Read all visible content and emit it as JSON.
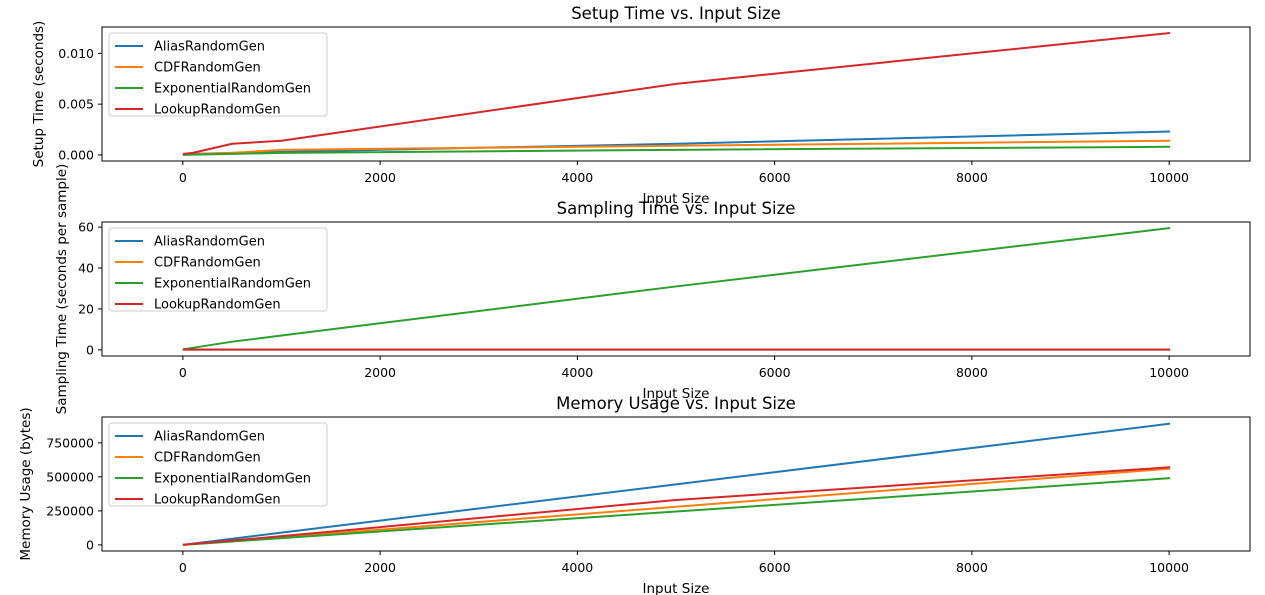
{
  "chart_data": [
    {
      "type": "line",
      "title": "Setup Time vs. Input Size",
      "xlabel": "Input Size",
      "ylabel": "Setup Time (seconds)",
      "xlim": [
        -820,
        10820
      ],
      "ylim": [
        -0.0006,
        0.0126
      ],
      "xticks": [
        0,
        2000,
        4000,
        6000,
        8000,
        10000
      ],
      "xtick_labels": [
        "0",
        "2000",
        "4000",
        "6000",
        "8000",
        "10000"
      ],
      "yticks": [
        0,
        0.005,
        0.01
      ],
      "ytick_labels": [
        "0.000",
        "0.005",
        "0.010"
      ],
      "legend_position": "upper-left",
      "grid": false,
      "x": [
        10,
        100,
        500,
        1000,
        5000,
        10000
      ],
      "series": [
        {
          "name": "AliasRandomGen",
          "color": "#1f77b4",
          "values": [
            5e-05,
            0.0001,
            0.0002,
            0.0003,
            0.0011,
            0.0023
          ]
        },
        {
          "name": "CDFRandomGen",
          "color": "#ff7f0e",
          "values": [
            3e-05,
            8e-05,
            0.0002,
            0.0005,
            0.0009,
            0.0014
          ]
        },
        {
          "name": "ExponentialRandomGen",
          "color": "#2ca02c",
          "values": [
            1e-05,
            3e-05,
            0.0001,
            0.0002,
            0.0005,
            0.0008
          ]
        },
        {
          "name": "LookupRandomGen",
          "color": "#d62728",
          "values": [
            0.0001,
            0.0002,
            0.0011,
            0.0014,
            0.007,
            0.012
          ]
        }
      ]
    },
    {
      "type": "line",
      "title": "Sampling Time vs. Input Size",
      "xlabel": "Input Size",
      "ylabel": "Sampling Time (seconds per sample)",
      "xlim": [
        -820,
        10820
      ],
      "ylim": [
        -3,
        62.5
      ],
      "xticks": [
        0,
        2000,
        4000,
        6000,
        8000,
        10000
      ],
      "xtick_labels": [
        "0",
        "2000",
        "4000",
        "6000",
        "8000",
        "10000"
      ],
      "yticks": [
        0,
        20,
        40,
        60
      ],
      "ytick_labels": [
        "0",
        "20",
        "40",
        "60"
      ],
      "legend_position": "upper-left",
      "grid": false,
      "x": [
        10,
        100,
        500,
        1000,
        5000,
        10000
      ],
      "series": [
        {
          "name": "AliasRandomGen",
          "color": "#1f77b4",
          "values": [
            0.1,
            0.1,
            0.1,
            0.1,
            0.1,
            0.1
          ]
        },
        {
          "name": "CDFRandomGen",
          "color": "#ff7f0e",
          "values": [
            0.1,
            0.1,
            0.1,
            0.1,
            0.1,
            0.1
          ]
        },
        {
          "name": "ExponentialRandomGen",
          "color": "#2ca02c",
          "values": [
            0.3,
            1.0,
            4.0,
            7.0,
            31.0,
            59.5
          ]
        },
        {
          "name": "LookupRandomGen",
          "color": "#d62728",
          "values": [
            0.2,
            0.2,
            0.2,
            0.2,
            0.2,
            0.2
          ]
        }
      ]
    },
    {
      "type": "line",
      "title": "Memory Usage vs. Input Size",
      "xlabel": "Input Size",
      "ylabel": "Memory Usage (bytes)",
      "xlim": [
        -820,
        10820
      ],
      "ylim": [
        -45000,
        940000
      ],
      "xticks": [
        0,
        2000,
        4000,
        6000,
        8000,
        10000
      ],
      "xtick_labels": [
        "0",
        "2000",
        "4000",
        "6000",
        "8000",
        "10000"
      ],
      "yticks": [
        0,
        250000,
        500000,
        750000
      ],
      "ytick_labels": [
        "0",
        "250000",
        "500000",
        "750000"
      ],
      "legend_position": "upper-left",
      "grid": false,
      "x": [
        10,
        100,
        500,
        1000,
        5000,
        10000
      ],
      "series": [
        {
          "name": "AliasRandomGen",
          "color": "#1f77b4",
          "values": [
            1000,
            9000,
            45000,
            90000,
            445000,
            890000
          ]
        },
        {
          "name": "CDFRandomGen",
          "color": "#ff7f0e",
          "values": [
            600,
            6000,
            28000,
            56000,
            280000,
            560000
          ]
        },
        {
          "name": "ExponentialRandomGen",
          "color": "#2ca02c",
          "values": [
            500,
            5000,
            25000,
            50000,
            245000,
            490000
          ]
        },
        {
          "name": "LookupRandomGen",
          "color": "#d62728",
          "values": [
            700,
            7000,
            32000,
            64000,
            330000,
            570000
          ]
        }
      ]
    }
  ]
}
